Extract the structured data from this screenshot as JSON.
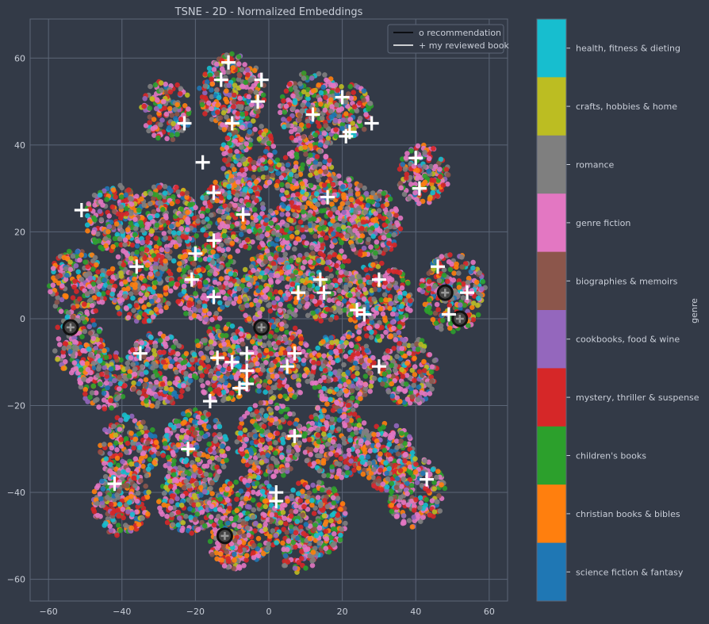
{
  "chart_data": {
    "type": "scatter",
    "title": "TSNE - 2D - Normalized Embeddings",
    "xlim": [
      -65,
      65
    ],
    "ylim": [
      -65,
      69
    ],
    "x_ticks": [
      -60,
      -40,
      -20,
      0,
      20,
      40,
      60
    ],
    "y_ticks": [
      -60,
      -40,
      -20,
      0,
      20,
      40,
      60
    ],
    "grid": true,
    "legend_position": "top-right",
    "legend": [
      {
        "label": "o recommendation",
        "line_color": "#000000"
      },
      {
        "label": "+ my reviewed book",
        "line_color": "#ffffff"
      }
    ],
    "colorbar": {
      "label": "genre",
      "categories": [
        {
          "name": "health, fitness & dieting",
          "color": "#17becf"
        },
        {
          "name": "crafts, hobbies & home",
          "color": "#bcbd22"
        },
        {
          "name": "romance",
          "color": "#7f7f7f"
        },
        {
          "name": "genre fiction",
          "color": "#e377c2"
        },
        {
          "name": "biographies & memoirs",
          "color": "#8c564b"
        },
        {
          "name": "cookbooks, food & wine",
          "color": "#9467bd"
        },
        {
          "name": "mystery, thriller & suspense",
          "color": "#d62728"
        },
        {
          "name": "children's books",
          "color": "#2ca02c"
        },
        {
          "name": "christian books & bibles",
          "color": "#ff7f0e"
        },
        {
          "name": "science fiction & fantasy",
          "color": "#1f77b4"
        }
      ]
    },
    "clusters": [
      {
        "x": -28,
        "y": 48,
        "r": 7
      },
      {
        "x": -10,
        "y": 52,
        "r": 9
      },
      {
        "x": 12,
        "y": 48,
        "r": 9
      },
      {
        "x": 22,
        "y": 48,
        "r": 6
      },
      {
        "x": -5,
        "y": 37,
        "r": 8
      },
      {
        "x": 10,
        "y": 32,
        "r": 8
      },
      {
        "x": 20,
        "y": 25,
        "r": 8
      },
      {
        "x": 42,
        "y": 33,
        "r": 7
      },
      {
        "x": -42,
        "y": 23,
        "r": 8
      },
      {
        "x": -28,
        "y": 22,
        "r": 9
      },
      {
        "x": -10,
        "y": 24,
        "r": 9
      },
      {
        "x": 6,
        "y": 18,
        "r": 9
      },
      {
        "x": 28,
        "y": 22,
        "r": 8
      },
      {
        "x": -52,
        "y": 8,
        "r": 8
      },
      {
        "x": -35,
        "y": 8,
        "r": 9
      },
      {
        "x": -17,
        "y": 8,
        "r": 9
      },
      {
        "x": 0,
        "y": 6,
        "r": 9
      },
      {
        "x": 15,
        "y": 8,
        "r": 9
      },
      {
        "x": 30,
        "y": 4,
        "r": 9
      },
      {
        "x": 50,
        "y": 6,
        "r": 9
      },
      {
        "x": -52,
        "y": -6,
        "r": 7
      },
      {
        "x": -45,
        "y": -14,
        "r": 7
      },
      {
        "x": -30,
        "y": -12,
        "r": 9
      },
      {
        "x": -12,
        "y": -10,
        "r": 9
      },
      {
        "x": 3,
        "y": -10,
        "r": 9
      },
      {
        "x": 20,
        "y": -12,
        "r": 9
      },
      {
        "x": 38,
        "y": -12,
        "r": 8
      },
      {
        "x": -38,
        "y": -30,
        "r": 8
      },
      {
        "x": -20,
        "y": -30,
        "r": 9
      },
      {
        "x": 0,
        "y": -28,
        "r": 9
      },
      {
        "x": 18,
        "y": -28,
        "r": 9
      },
      {
        "x": 32,
        "y": -32,
        "r": 8
      },
      {
        "x": -40,
        "y": -42,
        "r": 8
      },
      {
        "x": -22,
        "y": -42,
        "r": 8
      },
      {
        "x": -6,
        "y": -46,
        "r": 10
      },
      {
        "x": 12,
        "y": -46,
        "r": 9
      },
      {
        "x": 40,
        "y": -40,
        "r": 8
      },
      {
        "x": -10,
        "y": -52,
        "r": 6
      },
      {
        "x": 8,
        "y": -54,
        "r": 5
      }
    ],
    "reviewed_books": [
      {
        "x": -11,
        "y": 59
      },
      {
        "x": -13,
        "y": 55
      },
      {
        "x": -2,
        "y": 55
      },
      {
        "x": -3,
        "y": 50
      },
      {
        "x": 20,
        "y": 51
      },
      {
        "x": 12,
        "y": 47
      },
      {
        "x": 28,
        "y": 45
      },
      {
        "x": -23,
        "y": 45
      },
      {
        "x": -10,
        "y": 45
      },
      {
        "x": 22,
        "y": 43
      },
      {
        "x": 21,
        "y": 42
      },
      {
        "x": -18,
        "y": 36
      },
      {
        "x": 40,
        "y": 37
      },
      {
        "x": 41,
        "y": 30
      },
      {
        "x": -15,
        "y": 29
      },
      {
        "x": 16,
        "y": 28
      },
      {
        "x": -51,
        "y": 25
      },
      {
        "x": -7,
        "y": 24
      },
      {
        "x": -15,
        "y": 18
      },
      {
        "x": -20,
        "y": 15
      },
      {
        "x": -36,
        "y": 12
      },
      {
        "x": 46,
        "y": 12
      },
      {
        "x": -21,
        "y": 9
      },
      {
        "x": 14,
        "y": 9
      },
      {
        "x": 30,
        "y": 9
      },
      {
        "x": 15,
        "y": 6
      },
      {
        "x": 8,
        "y": 6
      },
      {
        "x": 54,
        "y": 6
      },
      {
        "x": -15,
        "y": 5
      },
      {
        "x": 24,
        "y": 2
      },
      {
        "x": 26,
        "y": 1
      },
      {
        "x": 49,
        "y": 1
      },
      {
        "x": -35,
        "y": -8
      },
      {
        "x": -6,
        "y": -8
      },
      {
        "x": 7,
        "y": -8
      },
      {
        "x": -14,
        "y": -9
      },
      {
        "x": -10,
        "y": -10
      },
      {
        "x": 30,
        "y": -11
      },
      {
        "x": 5,
        "y": -11
      },
      {
        "x": -6,
        "y": -12
      },
      {
        "x": -8,
        "y": -16
      },
      {
        "x": -6,
        "y": -15
      },
      {
        "x": -16,
        "y": -19
      },
      {
        "x": 7,
        "y": -27
      },
      {
        "x": -22,
        "y": -30
      },
      {
        "x": -42,
        "y": -38
      },
      {
        "x": 43,
        "y": -37
      },
      {
        "x": 2,
        "y": -40
      },
      {
        "x": 2,
        "y": -42
      }
    ],
    "recommendations": [
      {
        "x": -54,
        "y": -2
      },
      {
        "x": -2,
        "y": -2
      },
      {
        "x": 48,
        "y": 6
      },
      {
        "x": 52,
        "y": 0
      },
      {
        "x": -12,
        "y": -50
      }
    ]
  }
}
